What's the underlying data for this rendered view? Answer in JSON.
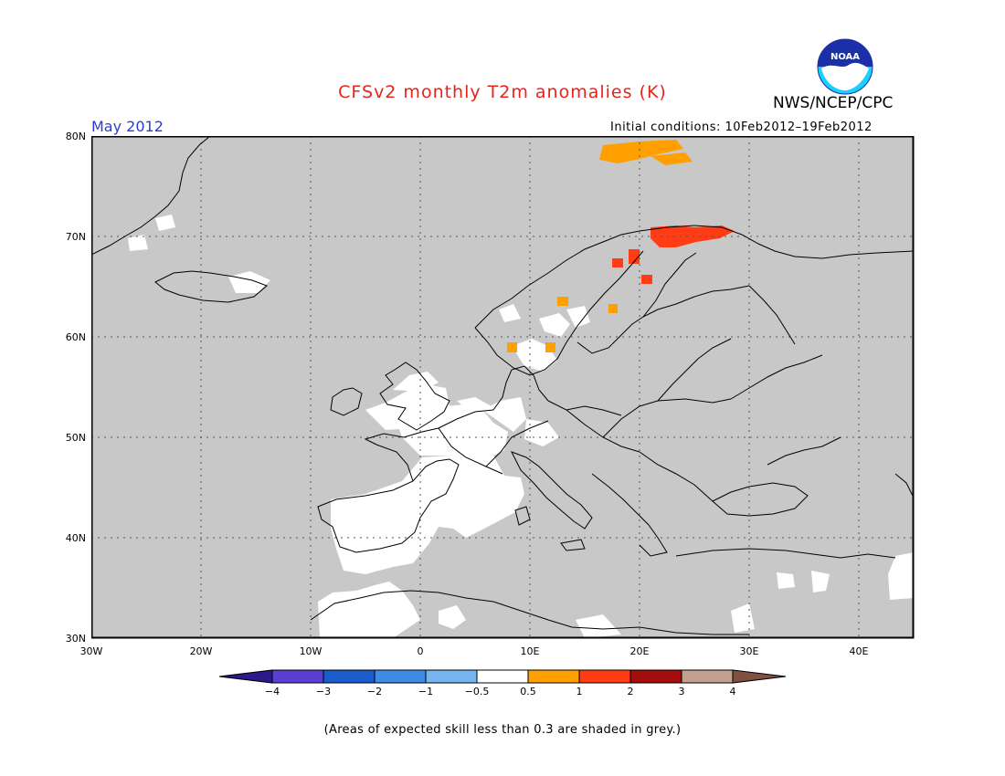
{
  "title": "CFSv2 monthly T2m anomalies (K)",
  "agency": "NWS/NCEP/CPC",
  "logo_text": "NOAA",
  "month": "May 2012",
  "initial_conditions": "Initial conditions: 10Feb2012–19Feb2012",
  "footnote": "(Areas of expected skill less than 0.3 are shaded in grey.)",
  "map": {
    "region": "Europe",
    "lon_range": [
      -30,
      45
    ],
    "lat_range": [
      30,
      80
    ],
    "grid": true,
    "lat_ticks": [
      "30N",
      "40N",
      "50N",
      "60N",
      "70N",
      "80N"
    ],
    "lon_ticks": [
      "30W",
      "20W",
      "10W",
      "0",
      "10E",
      "20E",
      "30E",
      "40E"
    ],
    "colors": {
      "low_skill_grey": "#c8c8c8",
      "ocean_grid": "#c8c8c8",
      "neutral": "#ffffff",
      "anomaly_0_5_to_1": "#ff9f00",
      "anomaly_1_to_2": "#ff3c14"
    }
  },
  "colorbar": {
    "labels": [
      "−4",
      "−3",
      "−2",
      "−1",
      "−0.5",
      "0.5",
      "1",
      "2",
      "3",
      "4"
    ],
    "colors": [
      "#2a1a8c",
      "#5a3fd2",
      "#1a5ccc",
      "#3e8ce8",
      "#76b6f0",
      "#ffffff",
      "#ff9f00",
      "#ff3c14",
      "#a40d0d",
      "#c4a090",
      "#805040"
    ]
  }
}
